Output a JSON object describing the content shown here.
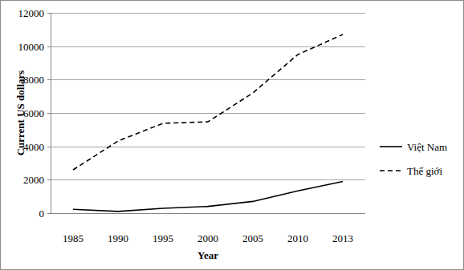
{
  "chart_data": {
    "type": "line",
    "x_label": "Year",
    "y_label": "Current US dollars",
    "categories": [
      "1985",
      "1990",
      "1995",
      "2000",
      "2005",
      "2010",
      "2013"
    ],
    "series": [
      {
        "name": "Việt Nam",
        "color": "#000000",
        "line_style": "solid",
        "values": [
          230,
          100,
          290,
          400,
          700,
          1330,
          1900
        ]
      },
      {
        "name": "Thế giới",
        "color": "#000000",
        "line_style": "dashed",
        "values": [
          2590,
          4320,
          5380,
          5470,
          7200,
          9500,
          10700
        ]
      }
    ],
    "ylim": [
      0,
      12000
    ],
    "yticks": [
      0,
      2000,
      4000,
      6000,
      8000,
      10000,
      12000
    ],
    "grid": true,
    "legend": "right"
  }
}
